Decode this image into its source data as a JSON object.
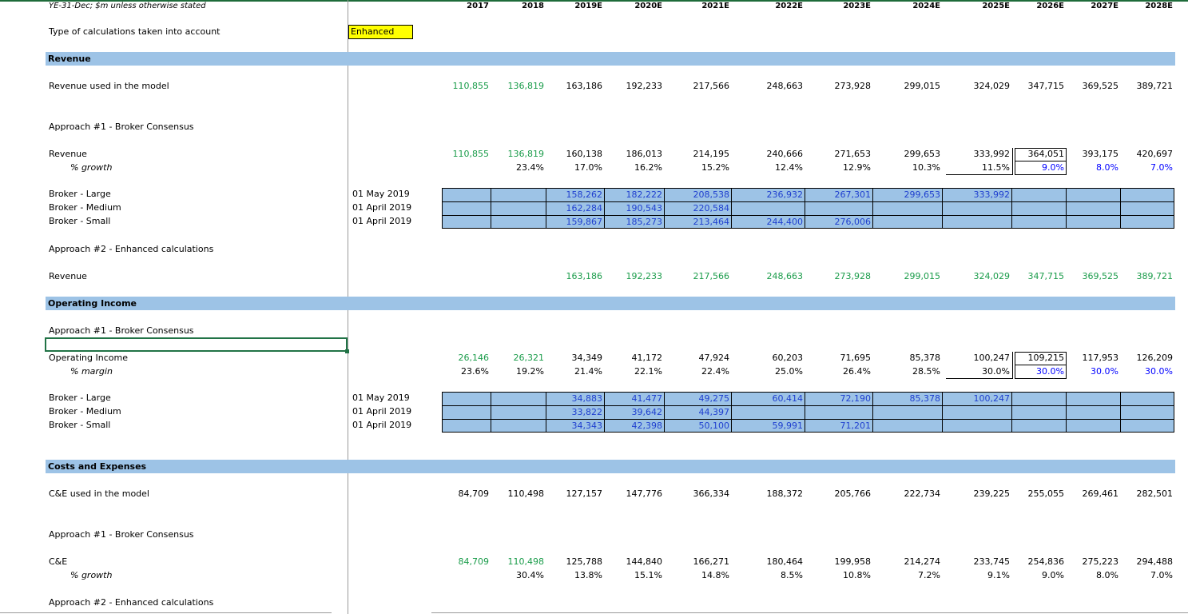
{
  "header": {
    "note": "YE-31-Dec; $m unless otherwise stated",
    "years": [
      "2017",
      "2018",
      "2019E",
      "2020E",
      "2021E",
      "2022E",
      "2023E",
      "2024E",
      "2025E",
      "2026E",
      "2027E",
      "2028E"
    ]
  },
  "calc_type": {
    "label": "Type of calculations taken into account",
    "value": "Enhanced"
  },
  "revenue": {
    "section": "Revenue",
    "used_label": "Revenue used in the model",
    "used": [
      "110,855",
      "136,819",
      "163,186",
      "192,233",
      "217,566",
      "248,663",
      "273,928",
      "299,015",
      "324,029",
      "347,715",
      "369,525",
      "389,721"
    ],
    "a1_label": "Approach #1 - Broker Consensus",
    "rev_label": "Revenue",
    "rev": [
      "110,855",
      "136,819",
      "160,138",
      "186,013",
      "214,195",
      "240,666",
      "271,653",
      "299,653",
      "333,992",
      "364,051",
      "393,175",
      "420,697"
    ],
    "growth_label": "% growth",
    "growth": [
      "",
      "23.4%",
      "17.0%",
      "16.2%",
      "15.2%",
      "12.4%",
      "12.9%",
      "10.3%",
      "11.5%",
      "9.0%",
      "8.0%",
      "7.0%"
    ],
    "brokers": [
      {
        "label": "Broker - Large",
        "date": "01 May 2019",
        "values": [
          "",
          "",
          "158,262",
          "182,222",
          "208,538",
          "236,932",
          "267,301",
          "299,653",
          "333,992",
          "",
          "",
          ""
        ]
      },
      {
        "label": "Broker - Medium",
        "date": "01 April 2019",
        "values": [
          "",
          "",
          "162,284",
          "190,543",
          "220,584",
          "",
          "",
          "",
          "",
          "",
          "",
          ""
        ]
      },
      {
        "label": "Broker - Small",
        "date": "01 April 2019",
        "values": [
          "",
          "",
          "159,867",
          "185,273",
          "213,464",
          "244,400",
          "276,006",
          "",
          "",
          "",
          "",
          ""
        ]
      }
    ],
    "a2_label": "Approach #2 - Enhanced calculations",
    "a2_rev_label": "Revenue",
    "a2_rev": [
      "",
      "",
      "163,186",
      "192,233",
      "217,566",
      "248,663",
      "273,928",
      "299,015",
      "324,029",
      "347,715",
      "369,525",
      "389,721"
    ]
  },
  "opinc": {
    "section": "Operating Income",
    "a1_label": "Approach #1 - Broker Consensus",
    "oi_label": "Operating Income",
    "oi": [
      "26,146",
      "26,321",
      "34,349",
      "41,172",
      "47,924",
      "60,203",
      "71,695",
      "85,378",
      "100,247",
      "109,215",
      "117,953",
      "126,209"
    ],
    "margin_label": "% margin",
    "margin": [
      "23.6%",
      "19.2%",
      "21.4%",
      "22.1%",
      "22.4%",
      "25.0%",
      "26.4%",
      "28.5%",
      "30.0%",
      "30.0%",
      "30.0%",
      "30.0%"
    ],
    "brokers": [
      {
        "label": "Broker - Large",
        "date": "01 May 2019",
        "values": [
          "",
          "",
          "34,883",
          "41,477",
          "49,275",
          "60,414",
          "72,190",
          "85,378",
          "100,247",
          "",
          "",
          ""
        ]
      },
      {
        "label": "Broker - Medium",
        "date": "01 April 2019",
        "values": [
          "",
          "",
          "33,822",
          "39,642",
          "44,397",
          "",
          "",
          "",
          "",
          "",
          "",
          ""
        ]
      },
      {
        "label": "Broker - Small",
        "date": "01 April 2019",
        "values": [
          "",
          "",
          "34,343",
          "42,398",
          "50,100",
          "59,991",
          "71,201",
          "",
          "",
          "",
          "",
          ""
        ]
      }
    ]
  },
  "costs": {
    "section": "Costs and Expenses",
    "used_label": "C&E used in the model",
    "used": [
      "84,709",
      "110,498",
      "127,157",
      "147,776",
      "366,334",
      "188,372",
      "205,766",
      "222,734",
      "239,225",
      "255,055",
      "269,461",
      "282,501"
    ],
    "a1_label": "Approach #1 - Broker Consensus",
    "ce_label": "C&E",
    "ce": [
      "84,709",
      "110,498",
      "125,788",
      "144,840",
      "166,271",
      "180,464",
      "199,958",
      "214,274",
      "233,745",
      "254,836",
      "275,223",
      "294,488"
    ],
    "growth_label": "% growth",
    "growth": [
      "",
      "30.4%",
      "13.8%",
      "15.1%",
      "14.8%",
      "8.5%",
      "10.8%",
      "7.2%",
      "9.1%",
      "9.0%",
      "8.0%",
      "7.0%"
    ],
    "a2_label": "Approach #2 - Enhanced calculations"
  }
}
